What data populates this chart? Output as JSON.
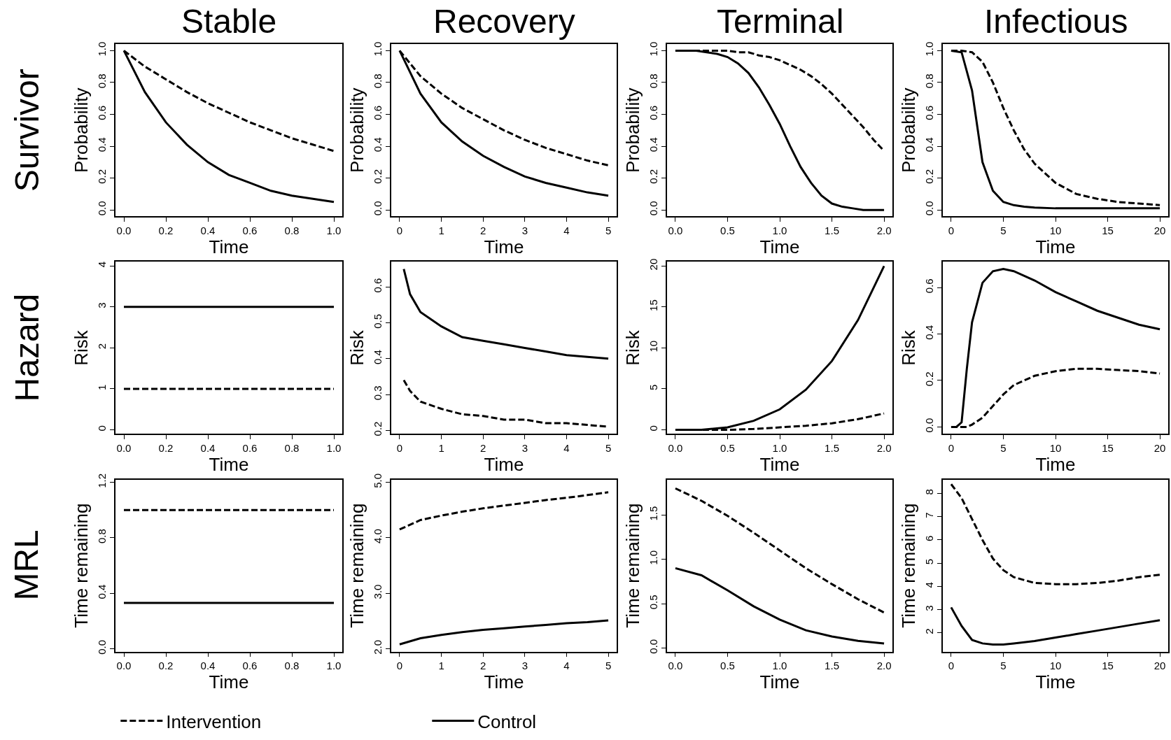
{
  "chart_data": [
    {
      "type": "line",
      "title": "Stable",
      "annotations": [
        "Survivor"
      ],
      "xlabel": "Time",
      "ylabel": "Probability",
      "legend": "bottom",
      "xlim": [
        -0.04,
        1.04
      ],
      "xticks": [
        {
          "value": 0,
          "label": "0.0"
        },
        0.2,
        0.4,
        0.6,
        0.8,
        {
          "value": 1,
          "label": "1.0"
        }
      ],
      "ylim": [
        -0.04,
        1.04
      ],
      "yticks": [
        {
          "value": 0,
          "label": "0.0"
        },
        0.2,
        0.4,
        0.6,
        0.8,
        {
          "value": 1,
          "label": "1.0"
        }
      ],
      "series": [
        {
          "name": "Intervention",
          "color": "#000000",
          "line_style": "dashed",
          "x": [
            0,
            0.1,
            0.2,
            0.3,
            0.4,
            0.5,
            0.6,
            0.7,
            0.8,
            0.9,
            1.0
          ],
          "values": [
            1,
            0.9,
            0.82,
            0.74,
            0.67,
            0.61,
            0.55,
            0.5,
            0.45,
            0.41,
            0.37
          ]
        },
        {
          "name": "Control",
          "color": "#000000",
          "line_style": "solid",
          "x": [
            0,
            0.1,
            0.2,
            0.3,
            0.4,
            0.5,
            0.6,
            0.7,
            0.8,
            0.9,
            1.0
          ],
          "values": [
            1,
            0.74,
            0.55,
            0.41,
            0.3,
            0.22,
            0.17,
            0.12,
            0.09,
            0.07,
            0.05
          ]
        }
      ]
    },
    {
      "type": "line",
      "title": "Recovery",
      "xlabel": "Time",
      "ylabel": "Probability",
      "xlim": [
        -0.2,
        5.2
      ],
      "xticks": [
        0,
        1,
        2,
        3,
        4,
        5
      ],
      "ylim": [
        -0.04,
        1.04
      ],
      "yticks": [
        {
          "value": 0,
          "label": "0.0"
        },
        0.2,
        0.4,
        0.6,
        0.8,
        {
          "value": 1,
          "label": "1.0"
        }
      ],
      "series": [
        {
          "color": "#000000",
          "line_style": "dashed",
          "x": [
            0,
            0.5,
            1,
            1.5,
            2,
            2.5,
            3,
            3.5,
            4,
            4.5,
            5
          ],
          "values": [
            1,
            0.84,
            0.73,
            0.64,
            0.57,
            0.5,
            0.44,
            0.39,
            0.35,
            0.31,
            0.28
          ]
        },
        {
          "color": "#000000",
          "line_style": "solid",
          "x": [
            0,
            0.5,
            1,
            1.5,
            2,
            2.5,
            3,
            3.5,
            4,
            4.5,
            5
          ],
          "values": [
            1,
            0.73,
            0.55,
            0.43,
            0.34,
            0.27,
            0.21,
            0.17,
            0.14,
            0.11,
            0.09
          ]
        }
      ]
    },
    {
      "type": "line",
      "title": "Terminal",
      "xlabel": "Time",
      "ylabel": "Probability",
      "xlim": [
        -0.08,
        2.08
      ],
      "xticks": [
        {
          "value": 0,
          "label": "0.0"
        },
        0.5,
        {
          "value": 1,
          "label": "1.0"
        },
        1.5,
        {
          "value": 2,
          "label": "2.0"
        }
      ],
      "ylim": [
        -0.04,
        1.04
      ],
      "yticks": [
        {
          "value": 0,
          "label": "0.0"
        },
        0.2,
        0.4,
        0.6,
        0.8,
        {
          "value": 1,
          "label": "1.0"
        }
      ],
      "series": [
        {
          "color": "#000000",
          "line_style": "dashed",
          "x": [
            0,
            0.1,
            0.2,
            0.3,
            0.4,
            0.5,
            0.6,
            0.7,
            0.8,
            0.9,
            1.0,
            1.1,
            1.2,
            1.3,
            1.4,
            1.5,
            1.6,
            1.7,
            1.8,
            1.9,
            2.0
          ],
          "values": [
            1,
            1,
            1,
            1,
            1,
            1,
            0.99,
            0.99,
            0.97,
            0.96,
            0.94,
            0.91,
            0.88,
            0.84,
            0.79,
            0.73,
            0.66,
            0.59,
            0.52,
            0.44,
            0.37
          ]
        },
        {
          "color": "#000000",
          "line_style": "solid",
          "x": [
            0,
            0.1,
            0.2,
            0.3,
            0.4,
            0.5,
            0.6,
            0.7,
            0.8,
            0.9,
            1.0,
            1.1,
            1.2,
            1.3,
            1.4,
            1.5,
            1.6,
            1.7,
            1.8,
            1.9,
            2.0
          ],
          "values": [
            1,
            1,
            1,
            0.99,
            0.98,
            0.96,
            0.92,
            0.86,
            0.77,
            0.66,
            0.54,
            0.4,
            0.27,
            0.17,
            0.09,
            0.04,
            0.02,
            0.01,
            0,
            0,
            0
          ]
        }
      ]
    },
    {
      "type": "line",
      "title": "Infectious",
      "xlabel": "Time",
      "ylabel": "Probability",
      "xlim": [
        -0.8,
        20.8
      ],
      "xticks": [
        0,
        5,
        10,
        15,
        20
      ],
      "ylim": [
        -0.04,
        1.04
      ],
      "yticks": [
        {
          "value": 0,
          "label": "0.0"
        },
        0.2,
        0.4,
        0.6,
        0.8,
        {
          "value": 1,
          "label": "1.0"
        }
      ],
      "series": [
        {
          "color": "#000000",
          "line_style": "dashed",
          "x": [
            0,
            1,
            2,
            3,
            4,
            5,
            6,
            7,
            8,
            10,
            12,
            14,
            16,
            18,
            20
          ],
          "values": [
            1,
            1,
            0.99,
            0.93,
            0.8,
            0.64,
            0.5,
            0.38,
            0.29,
            0.17,
            0.1,
            0.07,
            0.05,
            0.04,
            0.03
          ]
        },
        {
          "color": "#000000",
          "line_style": "solid",
          "x": [
            0,
            1,
            2,
            3,
            4,
            5,
            6,
            7,
            8,
            10,
            12,
            14,
            16,
            18,
            20
          ],
          "values": [
            1,
            0.99,
            0.75,
            0.3,
            0.12,
            0.05,
            0.03,
            0.02,
            0.015,
            0.01,
            0.01,
            0.01,
            0.01,
            0.01,
            0.01
          ]
        }
      ]
    },
    {
      "type": "line",
      "annotations": [
        "Hazard"
      ],
      "xlabel": "Time",
      "ylabel": "Risk",
      "xlim": [
        -0.04,
        1.04
      ],
      "xticks": [
        {
          "value": 0,
          "label": "0.0"
        },
        0.2,
        0.4,
        0.6,
        0.8,
        {
          "value": 1,
          "label": "1.0"
        }
      ],
      "ylim": [
        -0.1,
        4.1
      ],
      "yticks": [
        0,
        1,
        2,
        3,
        4
      ],
      "series": [
        {
          "color": "#000000",
          "line_style": "dashed",
          "x": [
            0,
            1
          ],
          "values": [
            1,
            1
          ]
        },
        {
          "color": "#000000",
          "line_style": "solid",
          "x": [
            0,
            1
          ],
          "values": [
            3,
            3
          ]
        }
      ]
    },
    {
      "type": "line",
      "xlabel": "Time",
      "ylabel": "Risk",
      "xlim": [
        -0.2,
        5.2
      ],
      "xticks": [
        0,
        1,
        2,
        3,
        4,
        5
      ],
      "ylim": [
        0.19,
        0.67
      ],
      "yticks": [
        0.2,
        0.3,
        0.4,
        0.5,
        0.6
      ],
      "series": [
        {
          "color": "#000000",
          "line_style": "dashed",
          "x": [
            0.1,
            0.25,
            0.5,
            1,
            1.5,
            2,
            2.5,
            3,
            3.5,
            4,
            4.5,
            5
          ],
          "values": [
            0.34,
            0.31,
            0.28,
            0.26,
            0.245,
            0.24,
            0.23,
            0.23,
            0.22,
            0.22,
            0.215,
            0.21
          ]
        },
        {
          "color": "#000000",
          "line_style": "solid",
          "x": [
            0.1,
            0.25,
            0.5,
            1,
            1.5,
            2,
            2.5,
            3,
            3.5,
            4,
            4.5,
            5
          ],
          "values": [
            0.65,
            0.58,
            0.53,
            0.49,
            0.46,
            0.45,
            0.44,
            0.43,
            0.42,
            0.41,
            0.405,
            0.4
          ]
        }
      ]
    },
    {
      "type": "line",
      "xlabel": "Time",
      "ylabel": "Risk",
      "xlim": [
        -0.08,
        2.08
      ],
      "xticks": [
        {
          "value": 0,
          "label": "0.0"
        },
        0.5,
        {
          "value": 1,
          "label": "1.0"
        },
        1.5,
        {
          "value": 2,
          "label": "2.0"
        }
      ],
      "ylim": [
        -0.5,
        20.5
      ],
      "yticks": [
        0,
        5,
        10,
        15,
        20
      ],
      "series": [
        {
          "color": "#000000",
          "line_style": "dashed",
          "x": [
            0,
            0.25,
            0.5,
            0.75,
            1,
            1.25,
            1.5,
            1.75,
            2
          ],
          "values": [
            0,
            0,
            0,
            0.1,
            0.3,
            0.5,
            0.8,
            1.3,
            2.0
          ]
        },
        {
          "color": "#000000",
          "line_style": "solid",
          "x": [
            0,
            0.25,
            0.5,
            0.75,
            1,
            1.25,
            1.5,
            1.75,
            2
          ],
          "values": [
            0,
            0,
            0.3,
            1.1,
            2.5,
            4.9,
            8.4,
            13.4,
            20
          ]
        }
      ]
    },
    {
      "type": "line",
      "xlabel": "Time",
      "ylabel": "Risk",
      "xlim": [
        -0.8,
        20.8
      ],
      "xticks": [
        0,
        5,
        10,
        15,
        20
      ],
      "ylim": [
        -0.03,
        0.71
      ],
      "yticks": [
        {
          "value": 0,
          "label": "0.0"
        },
        0.2,
        0.4,
        0.6
      ],
      "series": [
        {
          "color": "#000000",
          "line_style": "dashed",
          "x": [
            0,
            0.5,
            1,
            1.5,
            2,
            3,
            4,
            5,
            6,
            8,
            10,
            12,
            14,
            16,
            18,
            20
          ],
          "values": [
            0,
            0,
            0,
            0,
            0.01,
            0.04,
            0.09,
            0.14,
            0.18,
            0.22,
            0.24,
            0.25,
            0.25,
            0.245,
            0.24,
            0.23
          ]
        },
        {
          "color": "#000000",
          "line_style": "solid",
          "x": [
            0,
            0.5,
            1,
            1.5,
            2,
            3,
            4,
            5,
            6,
            8,
            10,
            12,
            14,
            16,
            18,
            20
          ],
          "values": [
            0,
            0,
            0.02,
            0.25,
            0.45,
            0.62,
            0.67,
            0.68,
            0.67,
            0.63,
            0.58,
            0.54,
            0.5,
            0.47,
            0.44,
            0.42
          ]
        }
      ]
    },
    {
      "type": "line",
      "annotations": [
        "MRL"
      ],
      "xlabel": "Time",
      "ylabel": "Time remaining",
      "xlim": [
        -0.04,
        1.04
      ],
      "xticks": [
        {
          "value": 0,
          "label": "0.0"
        },
        0.2,
        0.4,
        0.6,
        0.8,
        {
          "value": 1,
          "label": "1.0"
        }
      ],
      "ylim": [
        -0.02,
        1.22
      ],
      "yticks": [
        {
          "value": 0,
          "label": "0.0"
        },
        0.4,
        0.8,
        1.2
      ],
      "series": [
        {
          "color": "#000000",
          "line_style": "dashed",
          "x": [
            0,
            1
          ],
          "values": [
            1,
            1
          ]
        },
        {
          "color": "#000000",
          "line_style": "solid",
          "x": [
            0,
            1
          ],
          "values": [
            0.33,
            0.33
          ]
        }
      ]
    },
    {
      "type": "line",
      "xlabel": "Time",
      "ylabel": "Time remaining",
      "xlim": [
        -0.2,
        5.2
      ],
      "xticks": [
        0,
        1,
        2,
        3,
        4,
        5
      ],
      "ylim": [
        1.95,
        5.05
      ],
      "yticks": [
        {
          "value": 2,
          "label": "2.0"
        },
        {
          "value": 3,
          "label": "3.0"
        },
        {
          "value": 4,
          "label": "4.0"
        },
        {
          "value": 5,
          "label": "5.0"
        }
      ],
      "series": [
        {
          "color": "#000000",
          "line_style": "dashed",
          "x": [
            0,
            0.5,
            1,
            1.5,
            2,
            2.5,
            3,
            3.5,
            4,
            4.5,
            5
          ],
          "values": [
            4.15,
            4.32,
            4.4,
            4.47,
            4.53,
            4.58,
            4.63,
            4.68,
            4.72,
            4.77,
            4.82
          ]
        },
        {
          "color": "#000000",
          "line_style": "solid",
          "x": [
            0,
            0.5,
            1,
            1.5,
            2,
            2.5,
            3,
            3.5,
            4,
            4.5,
            5
          ],
          "values": [
            2.08,
            2.19,
            2.25,
            2.3,
            2.34,
            2.37,
            2.4,
            2.43,
            2.46,
            2.48,
            2.51
          ]
        }
      ]
    },
    {
      "type": "line",
      "xlabel": "Time",
      "ylabel": "Time remaining",
      "xlim": [
        -0.08,
        2.08
      ],
      "xticks": [
        {
          "value": 0,
          "label": "0.0"
        },
        0.5,
        {
          "value": 1,
          "label": "1.0"
        },
        1.5,
        {
          "value": 2,
          "label": "2.0"
        }
      ],
      "ylim": [
        -0.04,
        1.9
      ],
      "yticks": [
        {
          "value": 0,
          "label": "0.0"
        },
        0.5,
        {
          "value": 1,
          "label": "1.0"
        },
        1.5
      ],
      "series": [
        {
          "color": "#000000",
          "line_style": "dashed",
          "x": [
            0,
            0.25,
            0.5,
            0.75,
            1,
            1.25,
            1.5,
            1.75,
            2
          ],
          "values": [
            1.8,
            1.66,
            1.49,
            1.3,
            1.1,
            0.9,
            0.72,
            0.55,
            0.4
          ]
        },
        {
          "color": "#000000",
          "line_style": "solid",
          "x": [
            0,
            0.25,
            0.5,
            0.75,
            1,
            1.25,
            1.5,
            1.75,
            2
          ],
          "values": [
            0.9,
            0.82,
            0.65,
            0.47,
            0.32,
            0.2,
            0.13,
            0.08,
            0.05
          ]
        }
      ]
    },
    {
      "type": "line",
      "xlabel": "Time",
      "ylabel": "Time remaining",
      "xlim": [
        -0.8,
        20.8
      ],
      "xticks": [
        0,
        5,
        10,
        15,
        20
      ],
      "ylim": [
        1.2,
        8.6
      ],
      "yticks": [
        2,
        3,
        4,
        5,
        6,
        7,
        8
      ],
      "series": [
        {
          "color": "#000000",
          "line_style": "dashed",
          "x": [
            0,
            1,
            2,
            3,
            4,
            5,
            6,
            8,
            10,
            12,
            14,
            16,
            18,
            20
          ],
          "values": [
            8.4,
            7.8,
            6.9,
            6.0,
            5.2,
            4.7,
            4.4,
            4.15,
            4.1,
            4.1,
            4.15,
            4.25,
            4.4,
            4.5
          ]
        },
        {
          "color": "#000000",
          "line_style": "solid",
          "x": [
            0,
            1,
            2,
            3,
            4,
            5,
            6,
            8,
            10,
            12,
            14,
            16,
            18,
            20
          ],
          "values": [
            3.1,
            2.3,
            1.7,
            1.55,
            1.5,
            1.5,
            1.55,
            1.65,
            1.8,
            1.95,
            2.1,
            2.25,
            2.4,
            2.55
          ]
        }
      ]
    }
  ]
}
